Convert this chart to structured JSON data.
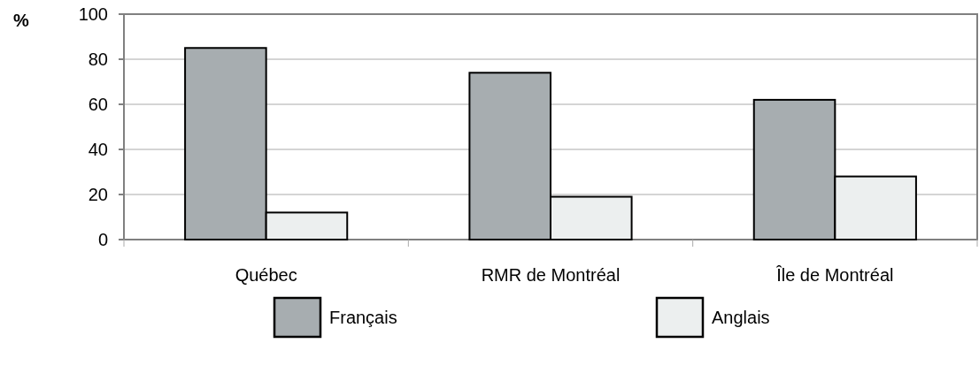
{
  "chart_data": {
    "type": "bar",
    "ylabel": "%",
    "categories": [
      "Québec",
      "RMR de Montréal",
      "Île de Montréal"
    ],
    "series": [
      {
        "name": "Français",
        "color": "#a7adb0",
        "values": [
          85,
          74,
          62
        ]
      },
      {
        "name": "Anglais",
        "color": "#ecefef",
        "values": [
          12,
          19,
          28
        ]
      }
    ],
    "ylim": [
      0,
      100
    ],
    "yticks": [
      0,
      20,
      40,
      60,
      80,
      100
    ],
    "grid": "y",
    "legend": "bottom"
  }
}
